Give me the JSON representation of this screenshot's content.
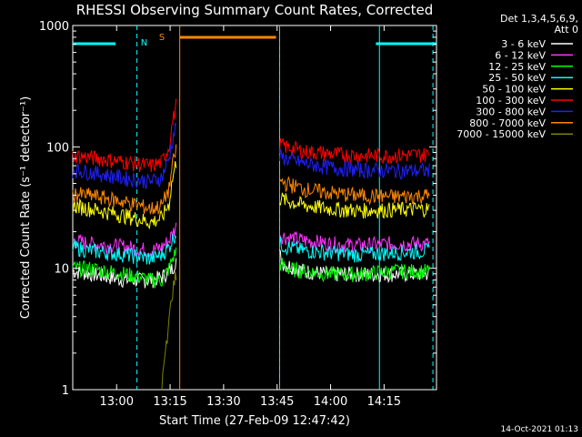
{
  "chart_data": {
    "type": "line",
    "title": "RHESSI Observing Summary Count Rates, Corrected",
    "xlabel": "Start Time (27-Feb-09 12:47:42)",
    "ylabel": "Corrected Count Rate (s⁻¹ detector⁻¹)",
    "yscale": "log",
    "ylim": [
      1,
      1000
    ],
    "xlim_minutes": [
      0,
      102
    ],
    "x_tick_labels": [
      "13:00",
      "13:15",
      "13:30",
      "13:45",
      "14:00",
      "14:15"
    ],
    "x_tick_minutes": [
      12.3,
      27.3,
      42.3,
      57.3,
      72.3,
      87.3
    ],
    "y_tick_labels": [
      "1",
      "10",
      "100",
      "1000"
    ],
    "y_tick_values": [
      1,
      10,
      100,
      1000
    ],
    "legend_header": [
      "Det 1,3,4,5,6,9,",
      "Att 0"
    ],
    "legend_placement": "right outside",
    "series": [
      {
        "name": "3 - 6 keV",
        "color": "#ffffff",
        "x": [
          0,
          5,
          15,
          22,
          25,
          28,
          29,
          58,
          59,
          65,
          72,
          80,
          90,
          100
        ],
        "values": [
          9.5,
          9,
          8,
          8,
          8.5,
          10,
          12,
          13,
          11,
          9.5,
          9,
          9,
          9,
          9
        ]
      },
      {
        "name": "6 - 12 keV",
        "color": "#ff33ff",
        "x": [
          0,
          5,
          15,
          22,
          25,
          27,
          29,
          58,
          60,
          65,
          72,
          80,
          90,
          100
        ],
        "values": [
          17,
          16,
          15,
          14,
          15,
          17,
          22,
          19,
          18,
          17,
          16,
          15.5,
          16,
          16
        ]
      },
      {
        "name": "12 - 25 keV",
        "color": "#00ff00",
        "x": [
          0,
          5,
          15,
          22,
          25,
          27,
          29,
          58,
          60,
          65,
          72,
          80,
          90,
          100
        ],
        "values": [
          10,
          10,
          9,
          8,
          8,
          10,
          14,
          11,
          10,
          9.5,
          9,
          9,
          9.5,
          9.5
        ]
      },
      {
        "name": "25 - 50 keV",
        "color": "#00ffff",
        "x": [
          0,
          5,
          15,
          22,
          25,
          27,
          29,
          58,
          60,
          65,
          72,
          80,
          90,
          100
        ],
        "values": [
          15,
          14,
          13,
          12,
          13,
          15,
          20,
          16,
          15,
          14,
          13.5,
          13,
          13.5,
          14
        ]
      },
      {
        "name": "50 - 100 keV",
        "color": "#ffff00",
        "x": [
          0,
          5,
          15,
          22,
          25,
          27,
          29,
          58,
          60,
          65,
          72,
          80,
          90,
          100
        ],
        "values": [
          33,
          31,
          27,
          24,
          26,
          34,
          75,
          38,
          36,
          33,
          31,
          30,
          30.5,
          31
        ]
      },
      {
        "name": "100 - 300 keV",
        "color": "#ff0000",
        "x": [
          0,
          5,
          15,
          22,
          25,
          27,
          29,
          58,
          60,
          65,
          72,
          80,
          90,
          100
        ],
        "values": [
          85,
          82,
          75,
          70,
          75,
          100,
          220,
          105,
          100,
          92,
          88,
          85,
          85,
          87
        ]
      },
      {
        "name": "300 - 800 keV",
        "color": "#2020ff",
        "x": [
          0,
          5,
          15,
          22,
          25,
          27,
          29,
          58,
          60,
          65,
          72,
          80,
          90,
          100
        ],
        "values": [
          65,
          62,
          55,
          52,
          56,
          80,
          150,
          84,
          80,
          73,
          68,
          65,
          64,
          64
        ]
      },
      {
        "name": "800 - 7000 keV",
        "color": "#ff8800",
        "x": [
          0,
          5,
          15,
          22,
          25,
          27,
          29,
          58,
          60,
          65,
          72,
          80,
          90,
          100
        ],
        "values": [
          41,
          40,
          35,
          31,
          33,
          45,
          95,
          52,
          50,
          45,
          42,
          40,
          39,
          40
        ]
      },
      {
        "name": "7000 - 15000 keV",
        "color": "#808000",
        "x": [
          25,
          26.5,
          27.5,
          28.5,
          29
        ],
        "values": [
          1,
          2.5,
          5,
          8,
          9
        ]
      }
    ],
    "annotations": [
      {
        "label": "N",
        "color": "#00ffff"
      },
      {
        "label": "S",
        "color": "#ff8800"
      }
    ],
    "orange_bar_minutes": [
      30,
      57
    ],
    "cyan_bar_minutes": [
      [
        0,
        12
      ],
      [
        85,
        102
      ]
    ],
    "solid_vlines": [
      {
        "minute": 30,
        "color": "#ff8800"
      },
      {
        "minute": 58,
        "color": "#00ffff"
      },
      {
        "minute": 86,
        "color": "#00ffff"
      }
    ],
    "dashed_vlines": [
      {
        "minute": 18,
        "color": "#00ffff"
      },
      {
        "minute": 58,
        "color": "#ff8800"
      },
      {
        "minute": 101,
        "color": "#00ffff"
      }
    ]
  },
  "footer": {
    "timestamp": "14-Oct-2021 01:13"
  }
}
